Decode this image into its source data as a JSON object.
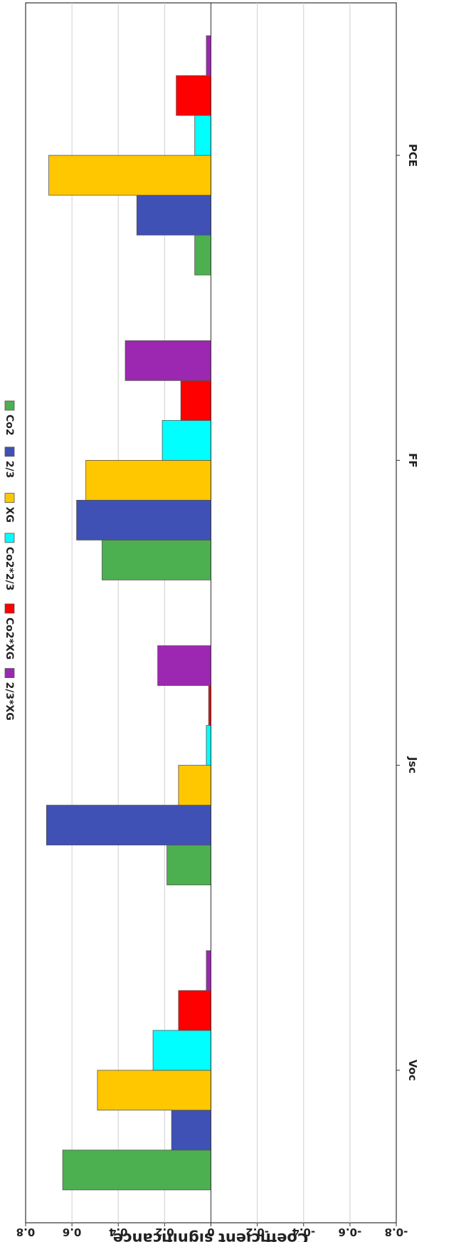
{
  "chart_data": {
    "type": "bar",
    "orientation": "horizontal",
    "categories": [
      "Voc",
      "Jsc",
      "FF",
      "PCE"
    ],
    "ylabel": "Coefficient significance",
    "ylim": [
      -0.8,
      0.8
    ],
    "ticks": [
      "0.8",
      "0.6",
      "0.4",
      "0.2",
      "0",
      "-0.2",
      "-0.4",
      "-0.6",
      "-0.8"
    ],
    "grid": true,
    "legend_position": "top",
    "series": [
      {
        "name": "Co2",
        "color": "#4CAF50",
        "values": [
          0.64,
          0.19,
          0.47,
          0.07
        ]
      },
      {
        "name": "2/3",
        "color": "#3F51B5",
        "values": [
          0.17,
          0.71,
          0.58,
          0.32
        ]
      },
      {
        "name": "XG",
        "color": "#FFC700",
        "values": [
          0.49,
          0.14,
          0.54,
          0.7
        ]
      },
      {
        "name": "Co2*2/3",
        "color": "#00FFFF",
        "values": [
          0.25,
          0.02,
          0.21,
          0.07
        ]
      },
      {
        "name": "Co2*XG",
        "color": "#FF0000",
        "values": [
          0.14,
          0.01,
          0.13,
          0.15
        ]
      },
      {
        "name": "2/3*XG",
        "color": "#9C27B0",
        "values": [
          0.02,
          0.23,
          0.37,
          0.02
        ]
      }
    ]
  }
}
